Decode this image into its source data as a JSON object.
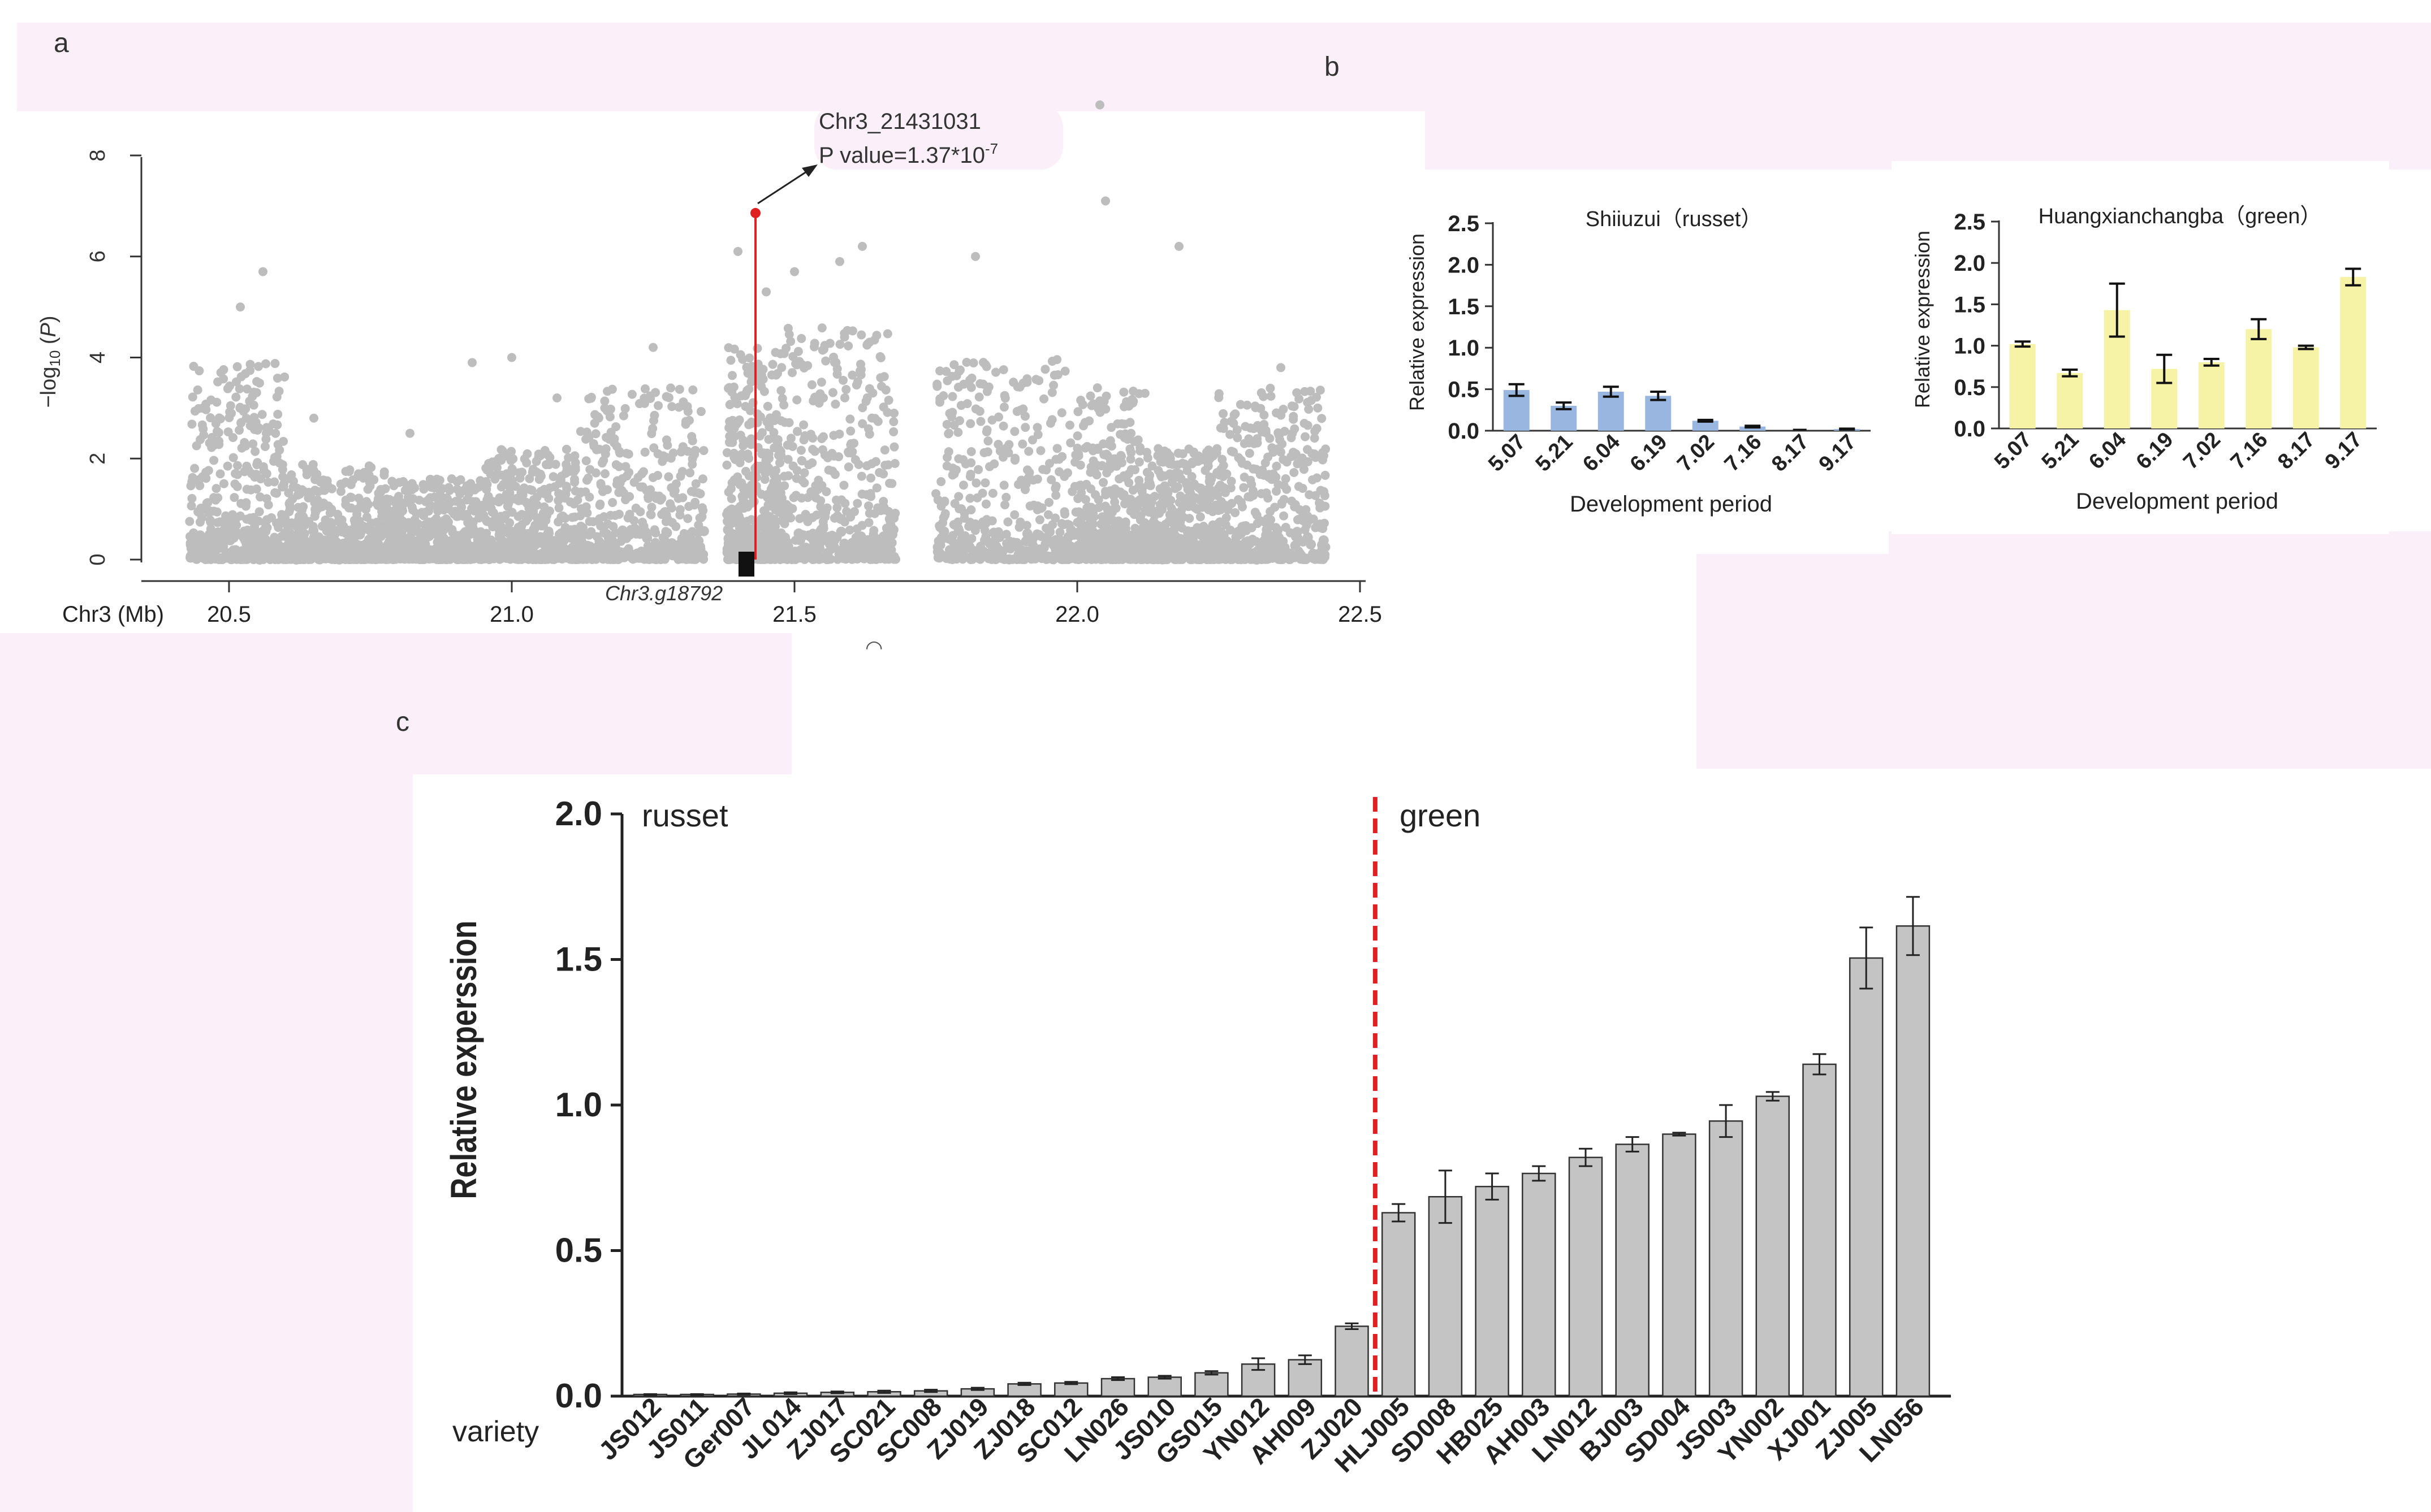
{
  "colors": {
    "tint": "#fbf0fa",
    "points": "#bdbdbd",
    "highlight": "#e02020",
    "blue_bar": "#98b6e0",
    "yellow_bar": "#f6f2a6",
    "gray_bar": "#c4c4c4",
    "divider": "#e02020"
  },
  "chart_data": [
    {
      "panel": "a",
      "type": "scatter",
      "title": "",
      "xlabel": "Chr3 (Mb)",
      "ylabel": "-log10 (P)",
      "ylabel_parts": {
        "pre": "−log",
        "sub": "10",
        "open": " (",
        "var": "P",
        "close": ")"
      },
      "xlim": [
        20.35,
        22.5
      ],
      "ylim": [
        0,
        8
      ],
      "x_ticks": [
        "20.5",
        "21.0",
        "21.5",
        "22.0",
        "22.5"
      ],
      "y_ticks": [
        "0",
        "2",
        "4",
        "6",
        "8"
      ],
      "clusters": [
        {
          "x": [
            20.43,
            20.6
          ],
          "max": 3.9
        },
        {
          "x": [
            20.6,
            20.78
          ],
          "max": 1.9
        },
        {
          "x": [
            20.78,
            20.95
          ],
          "max": 1.6
        },
        {
          "x": [
            20.95,
            21.12
          ],
          "max": 2.2
        },
        {
          "x": [
            21.12,
            21.34
          ],
          "max": 3.4
        },
        {
          "x": [
            21.38,
            21.48
          ],
          "max": 4.2
        },
        {
          "x": [
            21.48,
            21.68
          ],
          "max": 4.6
        },
        {
          "x": [
            21.75,
            22.0
          ],
          "max": 4.0
        },
        {
          "x": [
            22.0,
            22.12
          ],
          "max": 3.4
        },
        {
          "x": [
            22.12,
            22.25
          ],
          "max": 2.2
        },
        {
          "x": [
            22.25,
            22.44
          ],
          "max": 3.4
        }
      ],
      "outliers": [
        [
          20.52,
          5.0
        ],
        [
          20.56,
          5.7
        ],
        [
          20.65,
          2.8
        ],
        [
          20.82,
          2.5
        ],
        [
          20.93,
          3.9
        ],
        [
          21.0,
          4.0
        ],
        [
          21.08,
          3.2
        ],
        [
          21.25,
          4.2
        ],
        [
          21.4,
          6.1
        ],
        [
          21.45,
          5.3
        ],
        [
          21.5,
          5.7
        ],
        [
          21.58,
          5.9
        ],
        [
          21.62,
          6.2
        ],
        [
          21.82,
          6.0
        ],
        [
          22.04,
          9.0
        ],
        [
          22.05,
          7.1
        ],
        [
          22.18,
          6.2
        ],
        [
          22.36,
          3.8
        ]
      ],
      "lead_snp": {
        "x": 21.431031,
        "y": 6.86,
        "label": "Chr3_21431031",
        "pvalue_prefix": "P value=1.37*10",
        "pvalue_exp": "-7"
      },
      "gene_label": "Chr3.g18792"
    },
    {
      "panel": "b",
      "type": "bar",
      "title": "Shiiuzui（russet）",
      "xlabel": "Development period",
      "ylabel": "Relative expression",
      "categories": [
        "5.07",
        "5.21",
        "6.04",
        "6.19",
        "7.02",
        "7.16",
        "8.17",
        "9.17"
      ],
      "values": [
        0.49,
        0.3,
        0.47,
        0.42,
        0.12,
        0.05,
        0.0,
        0.02
      ],
      "errors": [
        0.07,
        0.04,
        0.06,
        0.05,
        0.01,
        0.01,
        0.0,
        0.005
      ],
      "ylim": [
        0,
        2.5
      ],
      "y_ticks": [
        "0.0",
        "0.5",
        "1.0",
        "1.5",
        "2.0",
        "2.5"
      ]
    },
    {
      "panel": "b",
      "type": "bar",
      "title": "Huangxianchangba（green）",
      "xlabel": "Development period",
      "ylabel": "Relative expression",
      "categories": [
        "5.07",
        "5.21",
        "6.04",
        "6.19",
        "7.02",
        "7.16",
        "8.17",
        "9.17"
      ],
      "values": [
        1.02,
        0.67,
        1.43,
        0.72,
        0.8,
        1.2,
        0.98,
        1.83
      ],
      "errors": [
        0.03,
        0.04,
        0.32,
        0.17,
        0.04,
        0.12,
        0.02,
        0.1
      ],
      "ylim": [
        0,
        2.5
      ],
      "y_ticks": [
        "0.0",
        "0.5",
        "1.0",
        "1.5",
        "2.0",
        "2.5"
      ]
    },
    {
      "panel": "c",
      "type": "bar",
      "title": "",
      "xlabel": "variety",
      "ylabel": "Relative experssion",
      "categories": [
        "JS012",
        "JS011",
        "Ger007",
        "JL014",
        "ZJ017",
        "SC021",
        "SC008",
        "ZJ019",
        "ZJ018",
        "SC012",
        "LN026",
        "JS010",
        "GS015",
        "YN012",
        "AH009",
        "ZJ020",
        "HLJ005",
        "SD008",
        "HB025",
        "AH003",
        "LN012",
        "BJ003",
        "SD004",
        "JS003",
        "YN002",
        "XJ001",
        "ZJ005",
        "LN056"
      ],
      "values": [
        0.005,
        0.005,
        0.007,
        0.01,
        0.013,
        0.015,
        0.018,
        0.025,
        0.042,
        0.045,
        0.06,
        0.065,
        0.08,
        0.11,
        0.125,
        0.24,
        0.63,
        0.685,
        0.72,
        0.765,
        0.82,
        0.865,
        0.9,
        0.945,
        1.03,
        1.14,
        1.505,
        1.615
      ],
      "errors": [
        0.002,
        0.002,
        0.002,
        0.003,
        0.003,
        0.004,
        0.004,
        0.004,
        0.004,
        0.004,
        0.005,
        0.005,
        0.006,
        0.02,
        0.015,
        0.01,
        0.03,
        0.09,
        0.045,
        0.025,
        0.03,
        0.025,
        0.005,
        0.055,
        0.015,
        0.035,
        0.105,
        0.1
      ],
      "ylim": [
        0,
        2.0
      ],
      "y_ticks": [
        "0.0",
        "0.5",
        "1.0",
        "1.5",
        "2.0"
      ],
      "annotations": {
        "left": "russet",
        "right": "green",
        "divider_after_index": 15
      }
    }
  ],
  "panel_labels": {
    "a": "a",
    "b": "b",
    "c": "c"
  },
  "stray_mark": "◠"
}
